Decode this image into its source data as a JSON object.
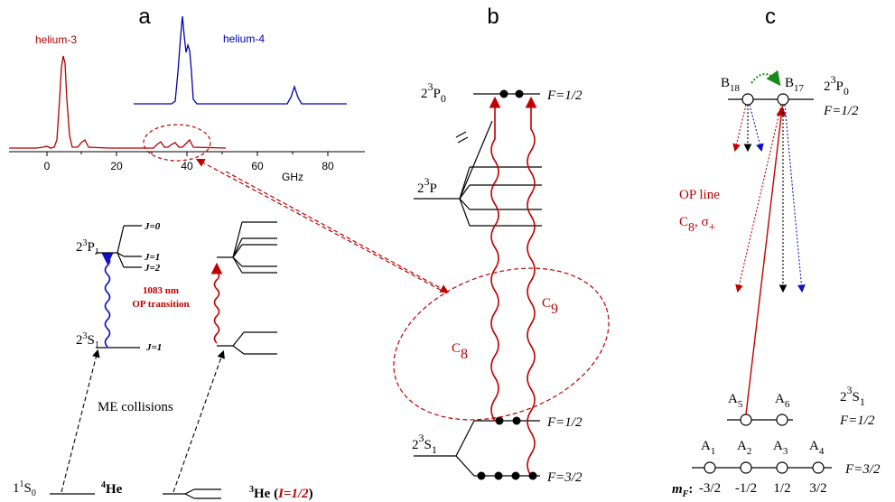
{
  "panels": {
    "a": "a",
    "b": "b",
    "c": "c"
  },
  "panel_a": {
    "spectrum": {
      "series": [
        {
          "name": "helium-3",
          "color": "#b30000"
        },
        {
          "name": "helium-4",
          "color": "#0000b3"
        }
      ],
      "x_ticks": [
        "0",
        "20",
        "40",
        "60",
        "80"
      ],
      "x_unit": "GHz"
    },
    "levels": {
      "state_23PJ": "2",
      "state_23PJ_sup": "3",
      "state_23PJ_main": "P",
      "state_23PJ_sub": "J",
      "j0": "J=0",
      "j1_top": "J=1",
      "j2": "J=2",
      "state_23S1": "2",
      "state_23S1_sup": "3",
      "state_23S1_main": "S",
      "state_23S1_sub": "1",
      "j1_bottom": "J=1",
      "transition_line1": "1083 nm",
      "transition_line2": "OP transition",
      "me_collisions": "ME collisions",
      "ground_pre": "1",
      "ground_sup": "1",
      "ground_main": "S",
      "ground_sub": "0",
      "he4_sup": "4",
      "he4": "He",
      "he3_sup": "3",
      "he3": "He (",
      "he3_spin": "I=1/2",
      "he3_close": ")"
    }
  },
  "panel_b": {
    "p0_label": {
      "pre": "2",
      "sup": "3",
      "main": "P",
      "sub": "0"
    },
    "p_label": {
      "pre": "2",
      "sup": "3",
      "main": "P"
    },
    "s1_label": {
      "pre": "2",
      "sup": "3",
      "main": "S",
      "sub": "1"
    },
    "f_half_top": "F=1/2",
    "f_half_mid": "F=1/2",
    "f_three_half": "F=3/2",
    "c8": {
      "main": "C",
      "sub": "8"
    },
    "c9": {
      "main": "C",
      "sub": "9"
    }
  },
  "panel_c": {
    "b18": {
      "main": "B",
      "sub": "18"
    },
    "b17": {
      "main": "B",
      "sub": "17"
    },
    "p0_label": {
      "pre": "2",
      "sup": "3",
      "main": "P",
      "sub": "0"
    },
    "f_top": "F=1/2",
    "op_line1": "OP line",
    "op_line2_main": "C",
    "op_line2_sub": "8",
    "op_line2_rest": ", σ",
    "op_line2_plus": "+",
    "a5": {
      "main": "A",
      "sub": "5"
    },
    "a6": {
      "main": "A",
      "sub": "6"
    },
    "s1_label": {
      "pre": "2",
      "sup": "3",
      "main": "S",
      "sub": "1"
    },
    "f_mid": "F=1/2",
    "a1": {
      "main": "A",
      "sub": "1"
    },
    "a2": {
      "main": "A",
      "sub": "2"
    },
    "a3": {
      "main": "A",
      "sub": "3"
    },
    "a4": {
      "main": "A",
      "sub": "4"
    },
    "f_bottom": "F=3/2",
    "mf_label_main": "m",
    "mf_label_sub": "F",
    "mf_label_colon": ":",
    "mf_values": [
      "-3/2",
      "-1/2",
      "1/2",
      "3/2"
    ]
  },
  "colors": {
    "red": "#c00000",
    "blue": "#1010c0",
    "green": "#1a8a1a",
    "black": "#000000"
  }
}
